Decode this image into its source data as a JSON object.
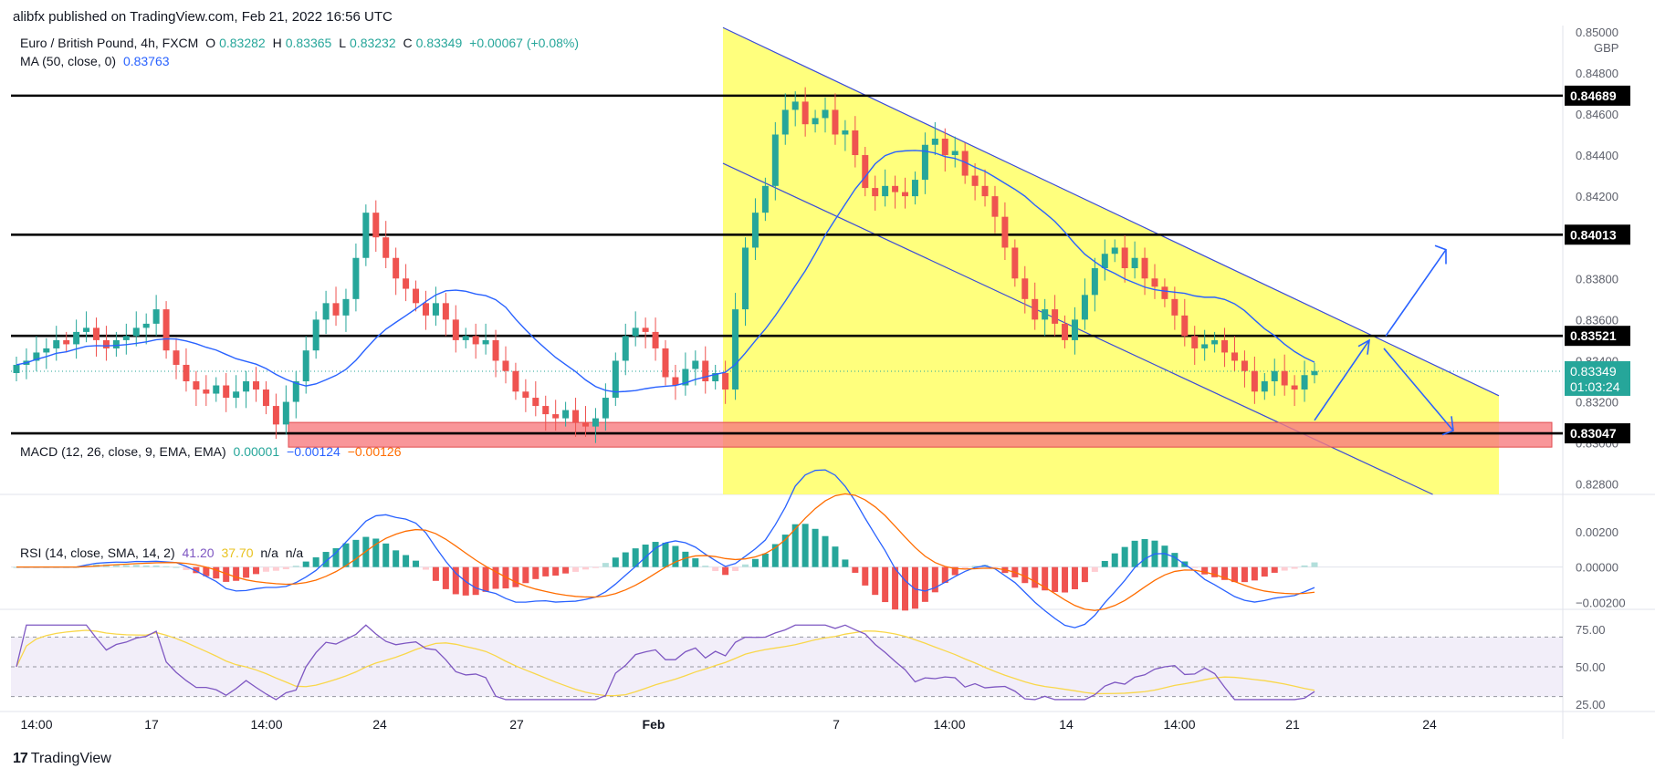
{
  "header": {
    "publisher": "alibfx published on TradingView.com, Feb 21, 2022 16:56 UTC"
  },
  "legend": {
    "symbol": "Euro / British Pound, 4h, FXCM",
    "o_label": "O",
    "o": "0.83282",
    "h_label": "H",
    "h": "0.83365",
    "l_label": "L",
    "l": "0.83232",
    "c_label": "C",
    "c": "0.83349",
    "change": "+0.00067 (+0.08%)",
    "ma_label": "MA (50, close, 0)",
    "ma_value": "0.83763",
    "macd_label": "MACD (12, 26, close, 9, EMA, EMA)",
    "macd_hist": "0.00001",
    "macd_line": "−0.00124",
    "macd_signal": "−0.00126",
    "rsi_label": "RSI (14, close, SMA, 14, 2)",
    "rsi_value": "41.20",
    "rsi_ma": "37.70",
    "rsi_na1": "n/a",
    "rsi_na2": "n/a"
  },
  "footer": {
    "logo_text": "TradingView",
    "logo_mark": "17"
  },
  "colors": {
    "up": "#26a69a",
    "down": "#ef5350",
    "ma": "#2962ff",
    "channel": "#ffff66",
    "zone": "#f77c80",
    "macd": "#2962ff",
    "signal": "#ff6d00",
    "rsi": "#7e57c2",
    "rsi_ma": "#f9d74a"
  },
  "chart_data": [
    {
      "type": "candlestick",
      "title": "Euro / British Pound, 4h, FXCM",
      "currency": "GBP",
      "ylim": [
        0.8275,
        0.8503
      ],
      "y_ticks": [
        "0.85000",
        "0.84800",
        "0.84600",
        "0.84400",
        "0.84200",
        "0.83800",
        "0.83600",
        "0.83400",
        "0.83200",
        "0.83000",
        "0.82800"
      ],
      "x_ticks": [
        "14:00",
        "17",
        "14:00",
        "24",
        "27",
        "Feb",
        "7",
        "14:00",
        "14",
        "14:00",
        "21",
        "24"
      ],
      "price_labels": [
        {
          "value": "0.84689"
        },
        {
          "value": "0.84013"
        },
        {
          "value": "0.83521"
        },
        {
          "value": "0.83349",
          "countdown": "01:03:24",
          "current": true
        },
        {
          "value": "0.83047"
        }
      ],
      "horizontal_levels": [
        0.84689,
        0.84013,
        0.83521,
        0.83047
      ],
      "support_zone": [
        0.8298,
        0.831
      ],
      "close_series": [
        0.8338,
        0.834,
        0.8344,
        0.8346,
        0.835,
        0.8348,
        0.8354,
        0.8356,
        0.835,
        0.8346,
        0.835,
        0.8352,
        0.8356,
        0.8358,
        0.8365,
        0.8345,
        0.8338,
        0.833,
        0.8326,
        0.8324,
        0.8328,
        0.8322,
        0.8325,
        0.833,
        0.8326,
        0.8318,
        0.8309,
        0.832,
        0.833,
        0.8345,
        0.836,
        0.8368,
        0.8362,
        0.837,
        0.839,
        0.8412,
        0.84,
        0.839,
        0.838,
        0.8375,
        0.8368,
        0.8362,
        0.8368,
        0.836,
        0.835,
        0.8352,
        0.8348,
        0.835,
        0.834,
        0.8335,
        0.8325,
        0.8322,
        0.8318,
        0.8314,
        0.8312,
        0.8316,
        0.831,
        0.8308,
        0.8312,
        0.8322,
        0.834,
        0.8352,
        0.8356,
        0.8354,
        0.8346,
        0.8332,
        0.8328,
        0.8336,
        0.834,
        0.833,
        0.8334,
        0.8326,
        0.8365,
        0.8395,
        0.8412,
        0.8425,
        0.845,
        0.8462,
        0.8466,
        0.8455,
        0.8458,
        0.8462,
        0.845,
        0.8452,
        0.844,
        0.8424,
        0.842,
        0.8425,
        0.8422,
        0.842,
        0.8428,
        0.8445,
        0.8448,
        0.844,
        0.8442,
        0.843,
        0.8425,
        0.842,
        0.841,
        0.8395,
        0.838,
        0.837,
        0.836,
        0.8365,
        0.8358,
        0.835,
        0.836,
        0.8372,
        0.8385,
        0.8392,
        0.8395,
        0.8385,
        0.839,
        0.838,
        0.8376,
        0.837,
        0.8362,
        0.8352,
        0.8346,
        0.8348,
        0.835,
        0.8344,
        0.834,
        0.8335,
        0.8325,
        0.833,
        0.8335,
        0.8328,
        0.8326,
        0.8333,
        0.8335
      ],
      "ma_label": "MA (50, close, 0)",
      "ma_value": 0.83763,
      "channel": {
        "upper": [
          [
            0.8502,
            0
          ],
          [
            0.8323,
            1
          ]
        ],
        "lower": [
          [
            0.8436,
            0
          ],
          [
            0.826,
            1
          ]
        ]
      }
    },
    {
      "type": "line",
      "title": "MACD (12, 26, close, 9, EMA, EMA)",
      "ylim": [
        -0.0024,
        0.0034
      ],
      "y_ticks": [
        "0.00200",
        "0.00000",
        "−0.00200"
      ],
      "series": [
        {
          "name": "MACD",
          "value": -0.00124
        },
        {
          "name": "Signal",
          "value": -0.00126
        },
        {
          "name": "Histogram",
          "value": 1e-05
        }
      ]
    },
    {
      "type": "line",
      "title": "RSI (14, close, SMA, 14, 2)",
      "ylim": [
        20,
        80
      ],
      "y_ticks": [
        "75.00",
        "50.00",
        "25.00"
      ],
      "bands": [
        30,
        70
      ],
      "series": [
        {
          "name": "RSI",
          "value": 41.2
        },
        {
          "name": "RSI MA",
          "value": 37.7
        }
      ]
    }
  ]
}
